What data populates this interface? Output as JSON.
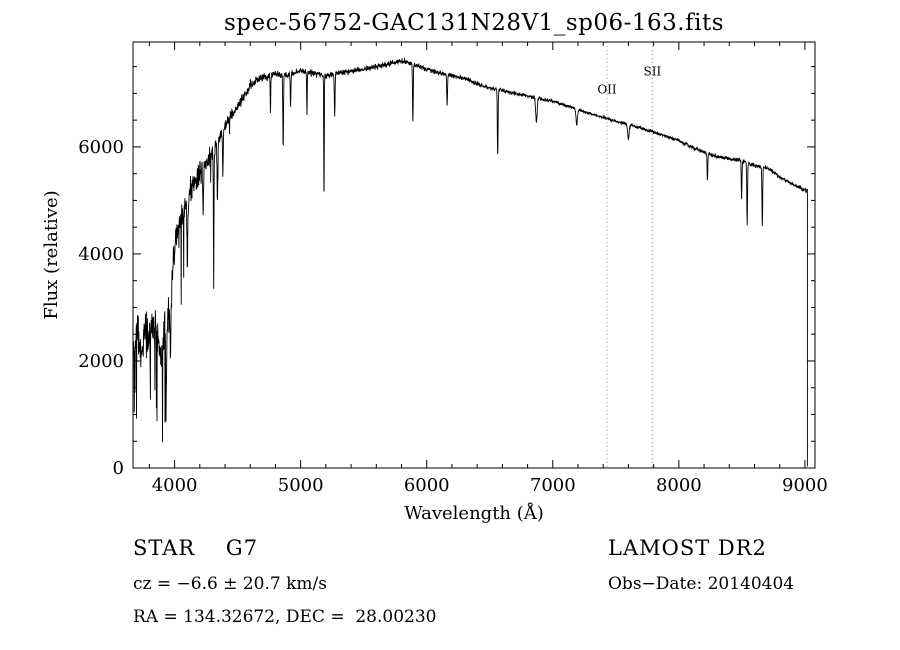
{
  "chart_data": {
    "type": "line",
    "series_name": "spectrum",
    "title": "spec-56752-GAC131N28V1_sp06-163.fits",
    "xlabel": "Wavelength (Å)",
    "ylabel": "Flux (relative)",
    "xlim": [
      3670,
      9080
    ],
    "ylim": [
      0,
      7960
    ],
    "x_ticks": [
      4000,
      5000,
      6000,
      7000,
      8000,
      9000
    ],
    "y_ticks": [
      0,
      2000,
      4000,
      6000
    ],
    "x_minor_step": 200,
    "y_minor_step": 500,
    "line_color": "#000000",
    "annotation_line_color": "#909090",
    "grid": false,
    "legend": false,
    "continuum": [
      [
        3670,
        2300
      ],
      [
        3700,
        2500
      ],
      [
        3730,
        2200
      ],
      [
        3770,
        2500
      ],
      [
        3810,
        2400
      ],
      [
        3850,
        2700
      ],
      [
        3890,
        2100
      ],
      [
        3930,
        2600
      ],
      [
        3970,
        3300
      ],
      [
        4000,
        4200
      ],
      [
        4050,
        4600
      ],
      [
        4100,
        5000
      ],
      [
        4150,
        5300
      ],
      [
        4200,
        5500
      ],
      [
        4250,
        5700
      ],
      [
        4300,
        5900
      ],
      [
        4350,
        6150
      ],
      [
        4400,
        6400
      ],
      [
        4450,
        6600
      ],
      [
        4500,
        6750
      ],
      [
        4550,
        6950
      ],
      [
        4600,
        7150
      ],
      [
        4650,
        7250
      ],
      [
        4700,
        7300
      ],
      [
        4800,
        7350
      ],
      [
        4900,
        7350
      ],
      [
        5000,
        7420
      ],
      [
        5100,
        7380
      ],
      [
        5200,
        7320
      ],
      [
        5300,
        7380
      ],
      [
        5400,
        7420
      ],
      [
        5500,
        7450
      ],
      [
        5600,
        7500
      ],
      [
        5700,
        7550
      ],
      [
        5800,
        7600
      ],
      [
        5900,
        7550
      ],
      [
        6000,
        7450
      ],
      [
        6100,
        7380
      ],
      [
        6200,
        7330
      ],
      [
        6300,
        7280
      ],
      [
        6400,
        7180
      ],
      [
        6500,
        7100
      ],
      [
        6600,
        7050
      ],
      [
        6700,
        7000
      ],
      [
        6800,
        6950
      ],
      [
        6900,
        6900
      ],
      [
        7000,
        6850
      ],
      [
        7100,
        6780
      ],
      [
        7200,
        6700
      ],
      [
        7300,
        6620
      ],
      [
        7400,
        6550
      ],
      [
        7500,
        6480
      ],
      [
        7600,
        6420
      ],
      [
        7700,
        6350
      ],
      [
        7800,
        6280
      ],
      [
        7900,
        6200
      ],
      [
        8000,
        6120
      ],
      [
        8100,
        6000
      ],
      [
        8200,
        5900
      ],
      [
        8300,
        5820
      ],
      [
        8400,
        5780
      ],
      [
        8500,
        5750
      ],
      [
        8600,
        5650
      ],
      [
        8700,
        5600
      ],
      [
        8800,
        5450
      ],
      [
        8900,
        5300
      ],
      [
        9000,
        5200
      ],
      [
        9020,
        5180
      ]
    ],
    "absorption_lines": [
      {
        "c": 3933,
        "d": 1400,
        "w": 6
      },
      {
        "c": 3968,
        "d": 1200,
        "w": 6
      },
      {
        "c": 4101,
        "d": 1300,
        "w": 5
      },
      {
        "c": 4226,
        "d": 900,
        "w": 4
      },
      {
        "c": 4310,
        "d": 2500,
        "w": 3
      },
      {
        "c": 4340,
        "d": 1100,
        "w": 5
      },
      {
        "c": 4383,
        "d": 800,
        "w": 4
      },
      {
        "c": 4760,
        "d": 700,
        "w": 3
      },
      {
        "c": 4861,
        "d": 1400,
        "w": 4
      },
      {
        "c": 4920,
        "d": 600,
        "w": 4
      },
      {
        "c": 5050,
        "d": 800,
        "w": 3
      },
      {
        "c": 5185,
        "d": 2400,
        "w": 3
      },
      {
        "c": 5270,
        "d": 800,
        "w": 4
      },
      {
        "c": 5890,
        "d": 1100,
        "w": 4
      },
      {
        "c": 6162,
        "d": 600,
        "w": 4
      },
      {
        "c": 6563,
        "d": 1300,
        "w": 4
      },
      {
        "c": 6870,
        "d": 450,
        "w": 8
      },
      {
        "c": 7190,
        "d": 300,
        "w": 8
      },
      {
        "c": 7600,
        "d": 300,
        "w": 8
      },
      {
        "c": 8227,
        "d": 500,
        "w": 4
      },
      {
        "c": 8498,
        "d": 700,
        "w": 4
      },
      {
        "c": 8542,
        "d": 1200,
        "w": 4
      },
      {
        "c": 8662,
        "d": 1100,
        "w": 4
      }
    ],
    "noise_amp": [
      [
        3670,
        650
      ],
      [
        3900,
        600
      ],
      [
        4000,
        500
      ],
      [
        4100,
        380
      ],
      [
        4200,
        300
      ],
      [
        4300,
        280
      ],
      [
        4400,
        200
      ],
      [
        4500,
        150
      ],
      [
        4700,
        110
      ],
      [
        5000,
        90
      ],
      [
        5500,
        80
      ],
      [
        6000,
        70
      ],
      [
        6500,
        60
      ],
      [
        7000,
        45
      ],
      [
        7500,
        40
      ],
      [
        8000,
        45
      ],
      [
        8500,
        55
      ],
      [
        9020,
        60
      ]
    ],
    "noise_seed": 42,
    "sample_step": 2,
    "end_drop": {
      "wavelength": 9020,
      "flux": 30
    },
    "annotations": [
      {
        "label": "OII",
        "wavelength": 7430,
        "label_flux": 7000
      },
      {
        "label": "SII",
        "wavelength": 7790,
        "label_flux": 7330
      }
    ]
  },
  "footer": {
    "classification": "STAR    G7",
    "survey": "LAMOST DR2",
    "cz": "cz = −6.6 ± 20.7 km/s",
    "obs_date": "Obs−Date: 20140404",
    "coords": "RA = 134.32672, DEC =  28.00230"
  }
}
